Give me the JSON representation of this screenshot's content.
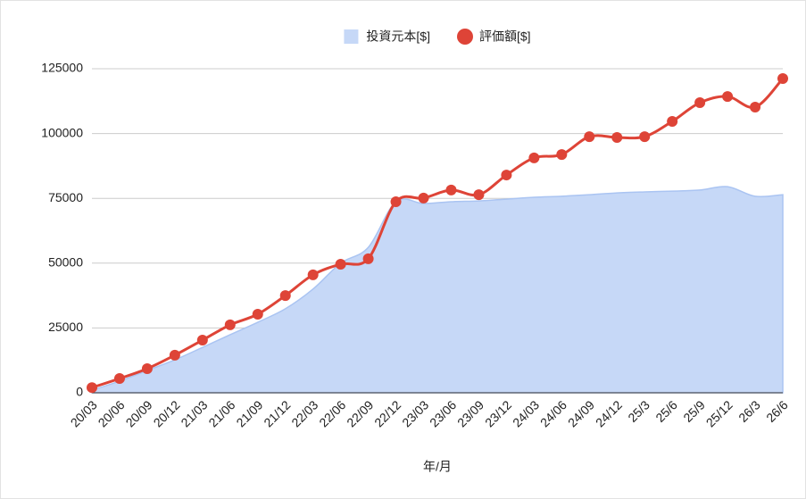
{
  "chart_data": {
    "type": "combo",
    "x_label": "年/月",
    "categories": [
      "20/03",
      "20/06",
      "20/09",
      "20/12",
      "21/03",
      "21/06",
      "21/09",
      "21/12",
      "22/03",
      "22/06",
      "22/09",
      "22/12",
      "23/03",
      "23/06",
      "23/09",
      "23/12",
      "24/03",
      "24/06",
      "24/09",
      "24/12",
      "25/3",
      "25/6",
      "25/9",
      "25/12",
      "26/3",
      "26/6"
    ],
    "series": [
      {
        "name": "投資元本[$]",
        "type": "area",
        "color": "#c6d8f7",
        "values": [
          1000,
          4500,
          8600,
          12700,
          17500,
          22400,
          27200,
          32400,
          40000,
          50000,
          56100,
          73700,
          73000,
          73700,
          74000,
          74700,
          75400,
          75800,
          76400,
          77100,
          77500,
          77800,
          78200,
          79500,
          75800,
          76400
        ]
      },
      {
        "name": "評価額[$]",
        "type": "line",
        "color": "#de4437",
        "values": [
          2000,
          5500,
          9300,
          14500,
          20300,
          26200,
          30300,
          37500,
          45500,
          49600,
          51700,
          73700,
          75100,
          78200,
          76400,
          84000,
          90600,
          91900,
          98800,
          98500,
          98800,
          104700,
          111900,
          114300,
          110200,
          121200
        ]
      }
    ],
    "ylim": [
      0,
      125000
    ],
    "yticks": [
      0,
      25000,
      50000,
      75000,
      100000,
      125000
    ],
    "grid": true,
    "legend": "top",
    "smooth": true
  }
}
